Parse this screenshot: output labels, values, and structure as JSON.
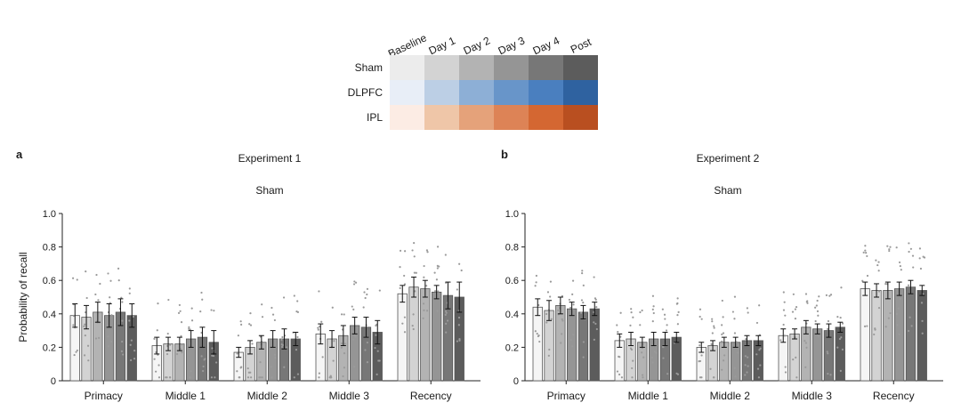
{
  "legend": {
    "columns": [
      "Baseline",
      "Day 1",
      "Day 2",
      "Day 3",
      "Day 4",
      "Post"
    ],
    "rows": [
      {
        "label": "Sham",
        "colors": [
          "#ececec",
          "#d3d3d3",
          "#b3b3b3",
          "#959595",
          "#777777",
          "#5c5c5c"
        ]
      },
      {
        "label": "DLPFC",
        "colors": [
          "#e8eef7",
          "#bccfe5",
          "#8dafd6",
          "#6895c9",
          "#4a7fbf",
          "#2f62a0"
        ]
      },
      {
        "label": "IPL",
        "colors": [
          "#fcece4",
          "#efc6a8",
          "#e5a27a",
          "#dd8356",
          "#d46732",
          "#b94f20"
        ]
      }
    ]
  },
  "chart_data": [
    {
      "type": "bar",
      "panel_label": "a",
      "title": "Experiment 1",
      "subtitle": "Sham",
      "ylabel": "Probability of recall",
      "ylim": [
        0,
        1.0
      ],
      "yticks": [
        "0",
        "0.2",
        "0.4",
        "0.6",
        "0.8",
        "1.0"
      ],
      "categories": [
        "Primacy",
        "Middle 1",
        "Middle 2",
        "Middle 3",
        "Recency"
      ],
      "series": [
        {
          "values": [
            0.39,
            0.21,
            0.17,
            0.28,
            0.52
          ],
          "errors": [
            0.07,
            0.05,
            0.03,
            0.06,
            0.05
          ]
        },
        {
          "values": [
            0.38,
            0.22,
            0.2,
            0.25,
            0.56
          ],
          "errors": [
            0.07,
            0.04,
            0.04,
            0.05,
            0.06
          ]
        },
        {
          "values": [
            0.41,
            0.22,
            0.23,
            0.27,
            0.55
          ],
          "errors": [
            0.06,
            0.04,
            0.04,
            0.06,
            0.05
          ]
        },
        {
          "values": [
            0.39,
            0.25,
            0.25,
            0.33,
            0.53
          ],
          "errors": [
            0.07,
            0.05,
            0.05,
            0.05,
            0.04
          ]
        },
        {
          "values": [
            0.41,
            0.26,
            0.25,
            0.32,
            0.51
          ],
          "errors": [
            0.08,
            0.06,
            0.06,
            0.06,
            0.08
          ]
        },
        {
          "values": [
            0.39,
            0.23,
            0.25,
            0.29,
            0.5
          ],
          "errors": [
            0.07,
            0.07,
            0.04,
            0.07,
            0.09
          ]
        }
      ]
    },
    {
      "type": "bar",
      "panel_label": "b",
      "title": "Experiment 2",
      "subtitle": "Sham",
      "ylabel": "",
      "ylim": [
        0,
        1.0
      ],
      "yticks": [
        "0",
        "0.2",
        "0.4",
        "0.6",
        "0.8",
        "1.0"
      ],
      "categories": [
        "Primacy",
        "Middle 1",
        "Middle 2",
        "Middle 3",
        "Recency"
      ],
      "series": [
        {
          "values": [
            0.44,
            0.24,
            0.2,
            0.27,
            0.55
          ],
          "errors": [
            0.05,
            0.04,
            0.03,
            0.04,
            0.04
          ]
        },
        {
          "values": [
            0.42,
            0.25,
            0.21,
            0.28,
            0.54
          ],
          "errors": [
            0.06,
            0.04,
            0.03,
            0.03,
            0.04
          ]
        },
        {
          "values": [
            0.45,
            0.23,
            0.23,
            0.32,
            0.54
          ],
          "errors": [
            0.05,
            0.03,
            0.03,
            0.04,
            0.05
          ]
        },
        {
          "values": [
            0.43,
            0.25,
            0.23,
            0.31,
            0.55
          ],
          "errors": [
            0.04,
            0.04,
            0.03,
            0.03,
            0.04
          ]
        },
        {
          "values": [
            0.41,
            0.25,
            0.24,
            0.3,
            0.56
          ],
          "errors": [
            0.04,
            0.04,
            0.03,
            0.04,
            0.04
          ]
        },
        {
          "values": [
            0.43,
            0.26,
            0.24,
            0.32,
            0.54
          ],
          "errors": [
            0.04,
            0.03,
            0.03,
            0.03,
            0.03
          ]
        }
      ]
    }
  ]
}
